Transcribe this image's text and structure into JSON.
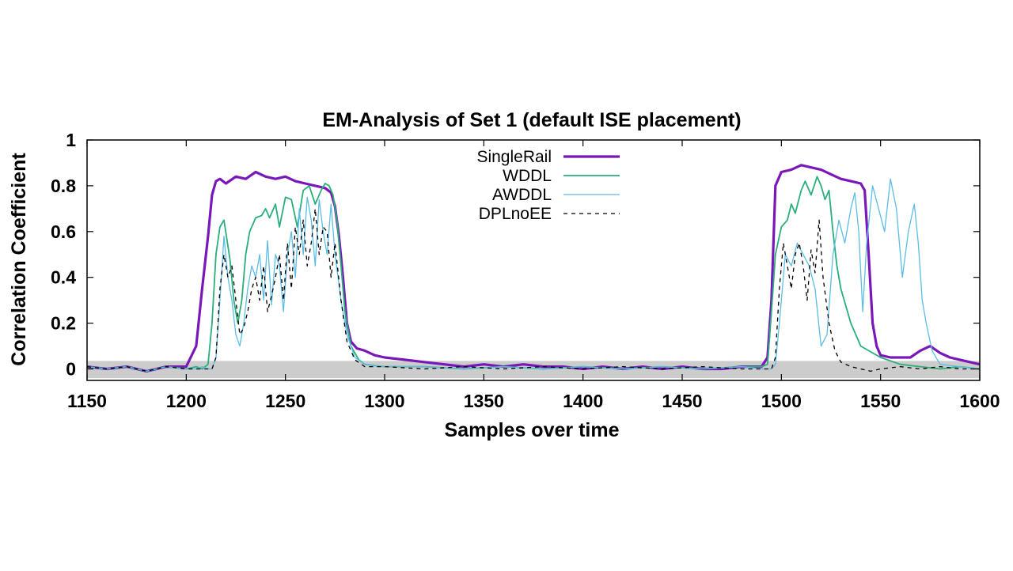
{
  "chart_data": {
    "type": "line",
    "title": "EM-Analysis of Set 1 (default ISE placement)",
    "xlabel": "Samples over time",
    "ylabel": "Correlation Coefficient",
    "xlim": [
      1150,
      1600
    ],
    "ylim": [
      -0.05,
      1.0
    ],
    "xticks": [
      "1150",
      "1200",
      "1250",
      "1300",
      "1350",
      "1400",
      "1450",
      "1500",
      "1550",
      "1600"
    ],
    "yticks": [
      "0",
      "0.2",
      "0.4",
      "0.6",
      "0.8",
      "1"
    ],
    "grid": false,
    "legend_position": "top-center",
    "noise_band": {
      "from": -0.04,
      "to": 0.035,
      "color": "#cccccc"
    },
    "series": [
      {
        "name": "SingleRail",
        "color": "#7a17b8",
        "style": "solid-thick",
        "x": [
          1150,
          1160,
          1170,
          1180,
          1190,
          1200,
          1205,
          1208,
          1211,
          1213,
          1215,
          1217,
          1220,
          1225,
          1230,
          1235,
          1240,
          1245,
          1250,
          1255,
          1260,
          1265,
          1270,
          1273,
          1275,
          1277,
          1279,
          1281,
          1283,
          1286,
          1290,
          1295,
          1300,
          1310,
          1320,
          1330,
          1340,
          1350,
          1360,
          1370,
          1380,
          1390,
          1400,
          1410,
          1420,
          1430,
          1440,
          1450,
          1460,
          1470,
          1480,
          1490,
          1493,
          1495,
          1497,
          1500,
          1505,
          1510,
          1515,
          1520,
          1525,
          1530,
          1535,
          1540,
          1542,
          1544,
          1546,
          1548,
          1550,
          1555,
          1560,
          1565,
          1570,
          1575,
          1580,
          1585,
          1590,
          1595,
          1600
        ],
        "y": [
          0.01,
          0.0,
          0.01,
          -0.01,
          0.01,
          0.01,
          0.1,
          0.35,
          0.58,
          0.76,
          0.82,
          0.83,
          0.81,
          0.84,
          0.83,
          0.86,
          0.84,
          0.83,
          0.84,
          0.82,
          0.81,
          0.8,
          0.79,
          0.77,
          0.71,
          0.58,
          0.4,
          0.2,
          0.12,
          0.09,
          0.08,
          0.06,
          0.05,
          0.04,
          0.03,
          0.02,
          0.01,
          0.02,
          0.01,
          0.02,
          0.01,
          0.01,
          0.0,
          0.01,
          0.0,
          0.01,
          0.0,
          0.01,
          0.0,
          0.0,
          0.01,
          0.01,
          0.05,
          0.3,
          0.8,
          0.86,
          0.87,
          0.89,
          0.88,
          0.87,
          0.85,
          0.83,
          0.82,
          0.81,
          0.78,
          0.5,
          0.2,
          0.1,
          0.06,
          0.05,
          0.05,
          0.05,
          0.08,
          0.1,
          0.07,
          0.05,
          0.04,
          0.03,
          0.02
        ]
      },
      {
        "name": "WDDL",
        "color": "#2aae7a",
        "style": "solid",
        "x": [
          1150,
          1160,
          1170,
          1180,
          1190,
          1200,
          1205,
          1208,
          1211,
          1213,
          1215,
          1217,
          1219,
          1222,
          1224,
          1226,
          1228,
          1230,
          1232,
          1235,
          1238,
          1240,
          1242,
          1245,
          1247,
          1250,
          1253,
          1256,
          1259,
          1262,
          1265,
          1268,
          1270,
          1272,
          1274,
          1276,
          1278,
          1280,
          1283,
          1287,
          1290,
          1300,
          1320,
          1340,
          1360,
          1380,
          1400,
          1420,
          1440,
          1460,
          1480,
          1490,
          1493,
          1495,
          1497,
          1500,
          1503,
          1505,
          1507,
          1510,
          1512,
          1515,
          1518,
          1520,
          1522,
          1524,
          1526,
          1528,
          1530,
          1535,
          1540,
          1550,
          1560,
          1570,
          1580,
          1590,
          1600
        ],
        "y": [
          0.01,
          0.0,
          0.01,
          -0.01,
          0.01,
          0.0,
          0.01,
          0.0,
          0.02,
          0.2,
          0.5,
          0.62,
          0.65,
          0.48,
          0.3,
          0.2,
          0.3,
          0.5,
          0.6,
          0.66,
          0.67,
          0.7,
          0.66,
          0.72,
          0.62,
          0.75,
          0.74,
          0.62,
          0.78,
          0.8,
          0.72,
          0.78,
          0.81,
          0.8,
          0.76,
          0.65,
          0.45,
          0.25,
          0.1,
          0.04,
          0.02,
          0.01,
          0.01,
          0.0,
          0.01,
          0.0,
          0.01,
          0.0,
          0.01,
          0.0,
          0.01,
          0.01,
          0.02,
          0.25,
          0.5,
          0.62,
          0.65,
          0.72,
          0.68,
          0.78,
          0.82,
          0.76,
          0.84,
          0.8,
          0.74,
          0.78,
          0.6,
          0.45,
          0.35,
          0.2,
          0.1,
          0.05,
          0.02,
          0.01,
          0.0,
          0.01,
          0.0
        ]
      },
      {
        "name": "AWDDL",
        "color": "#5bbde6",
        "style": "solid-thin",
        "x": [
          1150,
          1160,
          1170,
          1180,
          1190,
          1200,
          1205,
          1208,
          1211,
          1213,
          1215,
          1217,
          1219,
          1221,
          1223,
          1225,
          1227,
          1229,
          1231,
          1233,
          1235,
          1237,
          1239,
          1241,
          1243,
          1245,
          1247,
          1249,
          1251,
          1253,
          1255,
          1257,
          1259,
          1261,
          1263,
          1265,
          1267,
          1269,
          1271,
          1273,
          1275,
          1278,
          1281,
          1285,
          1290,
          1300,
          1320,
          1340,
          1360,
          1380,
          1400,
          1420,
          1440,
          1460,
          1480,
          1490,
          1495,
          1497,
          1499,
          1502,
          1505,
          1508,
          1511,
          1514,
          1517,
          1520,
          1523,
          1526,
          1529,
          1532,
          1535,
          1537,
          1539,
          1541,
          1543,
          1546,
          1549,
          1552,
          1555,
          1558,
          1561,
          1564,
          1567,
          1569,
          1571,
          1573,
          1576,
          1580,
          1590,
          1600
        ],
        "y": [
          0.01,
          0.0,
          0.01,
          -0.01,
          0.01,
          0.0,
          0.0,
          0.01,
          0.0,
          0.0,
          0.05,
          0.3,
          0.58,
          0.4,
          0.3,
          0.15,
          0.1,
          0.2,
          0.35,
          0.45,
          0.4,
          0.5,
          0.3,
          0.56,
          0.28,
          0.5,
          0.45,
          0.25,
          0.5,
          0.6,
          0.4,
          0.7,
          0.5,
          0.75,
          0.65,
          0.45,
          0.74,
          0.6,
          0.5,
          0.72,
          0.5,
          0.3,
          0.15,
          0.05,
          0.02,
          0.01,
          0.01,
          0.0,
          0.01,
          0.0,
          0.01,
          0.0,
          0.01,
          0.0,
          0.01,
          0.0,
          0.0,
          0.02,
          0.2,
          0.5,
          0.45,
          0.55,
          0.5,
          0.45,
          0.35,
          0.1,
          0.15,
          0.5,
          0.65,
          0.55,
          0.7,
          0.77,
          0.6,
          0.25,
          0.55,
          0.8,
          0.7,
          0.6,
          0.83,
          0.7,
          0.4,
          0.6,
          0.72,
          0.55,
          0.3,
          0.2,
          0.08,
          0.02,
          0.01,
          0.0
        ]
      },
      {
        "name": "DPLnoEE",
        "color": "#000000",
        "style": "dashed",
        "x": [
          1150,
          1160,
          1170,
          1180,
          1190,
          1200,
          1205,
          1208,
          1211,
          1213,
          1215,
          1217,
          1219,
          1221,
          1223,
          1225,
          1227,
          1229,
          1231,
          1233,
          1235,
          1237,
          1239,
          1241,
          1243,
          1245,
          1247,
          1249,
          1251,
          1253,
          1255,
          1257,
          1259,
          1261,
          1263,
          1265,
          1267,
          1269,
          1271,
          1273,
          1275,
          1278,
          1281,
          1285,
          1290,
          1300,
          1320,
          1340,
          1360,
          1380,
          1400,
          1420,
          1440,
          1460,
          1480,
          1490,
          1495,
          1497,
          1499,
          1501,
          1503,
          1505,
          1507,
          1509,
          1511,
          1513,
          1515,
          1517,
          1519,
          1521,
          1524,
          1527,
          1530,
          1535,
          1540,
          1545,
          1550,
          1560,
          1570,
          1580,
          1590,
          1600
        ],
        "y": [
          0.01,
          0.0,
          0.01,
          -0.01,
          0.01,
          0.0,
          0.0,
          0.0,
          0.0,
          0.0,
          0.05,
          0.35,
          0.5,
          0.4,
          0.45,
          0.3,
          0.15,
          0.18,
          0.25,
          0.35,
          0.4,
          0.3,
          0.45,
          0.25,
          0.32,
          0.4,
          0.5,
          0.3,
          0.55,
          0.35,
          0.62,
          0.5,
          0.65,
          0.45,
          0.55,
          0.7,
          0.5,
          0.62,
          0.6,
          0.4,
          0.55,
          0.3,
          0.12,
          0.04,
          0.01,
          0.01,
          0.0,
          0.01,
          0.0,
          0.01,
          0.0,
          0.01,
          0.0,
          0.01,
          0.0,
          0.0,
          0.0,
          0.05,
          0.35,
          0.55,
          0.45,
          0.35,
          0.5,
          0.55,
          0.45,
          0.3,
          0.52,
          0.42,
          0.65,
          0.4,
          0.2,
          0.08,
          0.03,
          0.01,
          0.0,
          -0.01,
          0.0,
          0.01,
          0.0,
          0.01,
          0.0,
          0.0
        ]
      }
    ]
  }
}
